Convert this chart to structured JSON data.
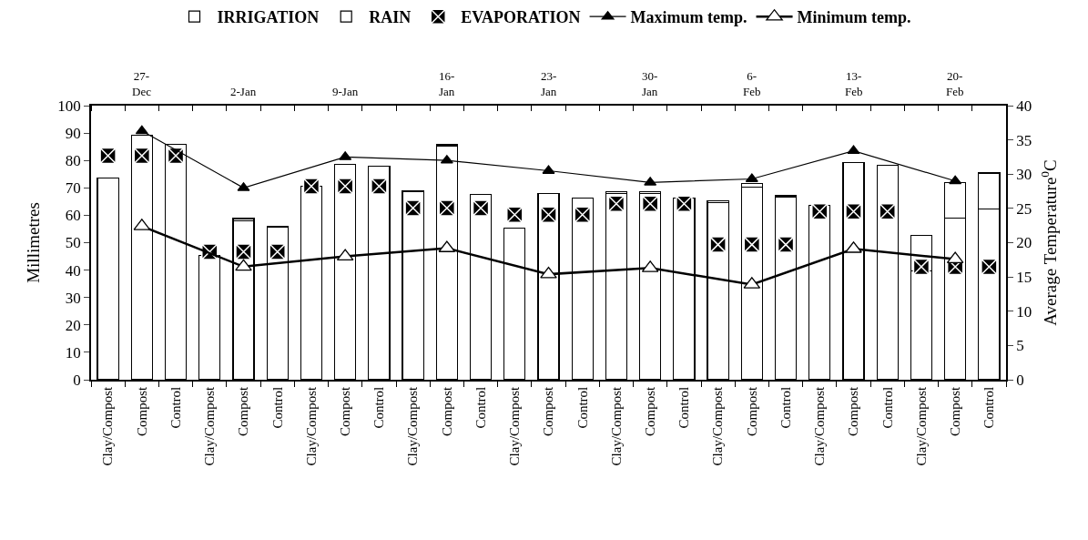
{
  "chart_data": {
    "type": "bar",
    "stacked": true,
    "categories": [
      "Clay/Compost",
      "Compost",
      "Control",
      "Clay/Compost",
      "Compost",
      "Control",
      "Clay/Compost",
      "Compost",
      "Control",
      "Clay/Compost",
      "Compost",
      "Control",
      "Clay/Compost",
      "Compost",
      "Control",
      "Clay/Compost",
      "Compost",
      "Control",
      "Clay/Compost",
      "Compost",
      "Control",
      "Clay/Compost",
      "Compost",
      "Control",
      "Clay/Compost",
      "Compost",
      "Control"
    ],
    "ylabel": "Millimetres",
    "y2label": "Average Temperature$^{0}$C",
    "ylim": [
      0,
      100
    ],
    "yticks": [
      0,
      10,
      20,
      30,
      40,
      50,
      60,
      70,
      80,
      90,
      100
    ],
    "y2lim": [
      0,
      40
    ],
    "y2ticks": [
      0,
      5,
      10,
      15,
      20,
      25,
      30,
      35,
      40
    ],
    "annotations": [
      "27-\nDec",
      "2-Jan",
      "9-Jan",
      "16-\nJan",
      "23-\nJan",
      "30-\nJan",
      "6-\nFeb",
      "13-\nFeb",
      "20-\nFeb"
    ],
    "legend": "top",
    "series": [
      {
        "name": "IRRIGATION",
        "color": "#ffffff",
        "values": [
          73.5,
          89.2,
          86.0,
          45.3,
          58.1,
          55.8,
          70.7,
          78.5,
          77.8,
          68.6,
          85.4,
          67.6,
          55.3,
          67.9,
          66.4,
          67.9,
          68.0,
          66.2,
          64.5,
          70.4,
          66.5,
          63.6,
          79.2,
          78.2,
          39.7,
          59.0,
          62.4
        ]
      },
      {
        "name": "RAIN",
        "color": "#ffffff",
        "values": [
          null,
          null,
          null,
          null,
          0.7,
          0.3,
          null,
          null,
          null,
          0.4,
          0.4,
          null,
          null,
          null,
          null,
          0.8,
          0.7,
          null,
          0.7,
          1.1,
          0.6,
          null,
          null,
          null,
          13.0,
          12.8,
          13.0
        ]
      },
      {
        "name": "EVAPORATION",
        "type": "scatter",
        "marker": "cross",
        "color": "#000000",
        "values": [
          81.7,
          81.7,
          81.7,
          46.7,
          46.7,
          46.7,
          70.6,
          70.6,
          70.6,
          62.6,
          62.6,
          62.6,
          60.2,
          60.2,
          60.2,
          64.2,
          64.2,
          64.2,
          49.3,
          49.3,
          49.3,
          61.4,
          61.4,
          61.4,
          41.2,
          41.2,
          41.2
        ]
      },
      {
        "name": "Maximum temp.",
        "type": "line",
        "axis": "y2",
        "marker": "triangle",
        "color": "#000000",
        "values": [
          null,
          36.3,
          null,
          null,
          28.0,
          null,
          null,
          32.5,
          null,
          null,
          32.0,
          null,
          null,
          30.5,
          null,
          null,
          28.8,
          null,
          null,
          29.3,
          null,
          null,
          33.4,
          null,
          null,
          29.0,
          null
        ]
      },
      {
        "name": "Minimum temp.",
        "type": "line",
        "axis": "y2",
        "marker": "triangle",
        "color": "#ffffff",
        "values": [
          null,
          22.4,
          null,
          null,
          16.5,
          null,
          null,
          18.0,
          null,
          null,
          19.2,
          null,
          null,
          15.4,
          null,
          null,
          16.3,
          null,
          null,
          13.9,
          null,
          null,
          19.1,
          null,
          null,
          17.6,
          null
        ]
      }
    ]
  }
}
